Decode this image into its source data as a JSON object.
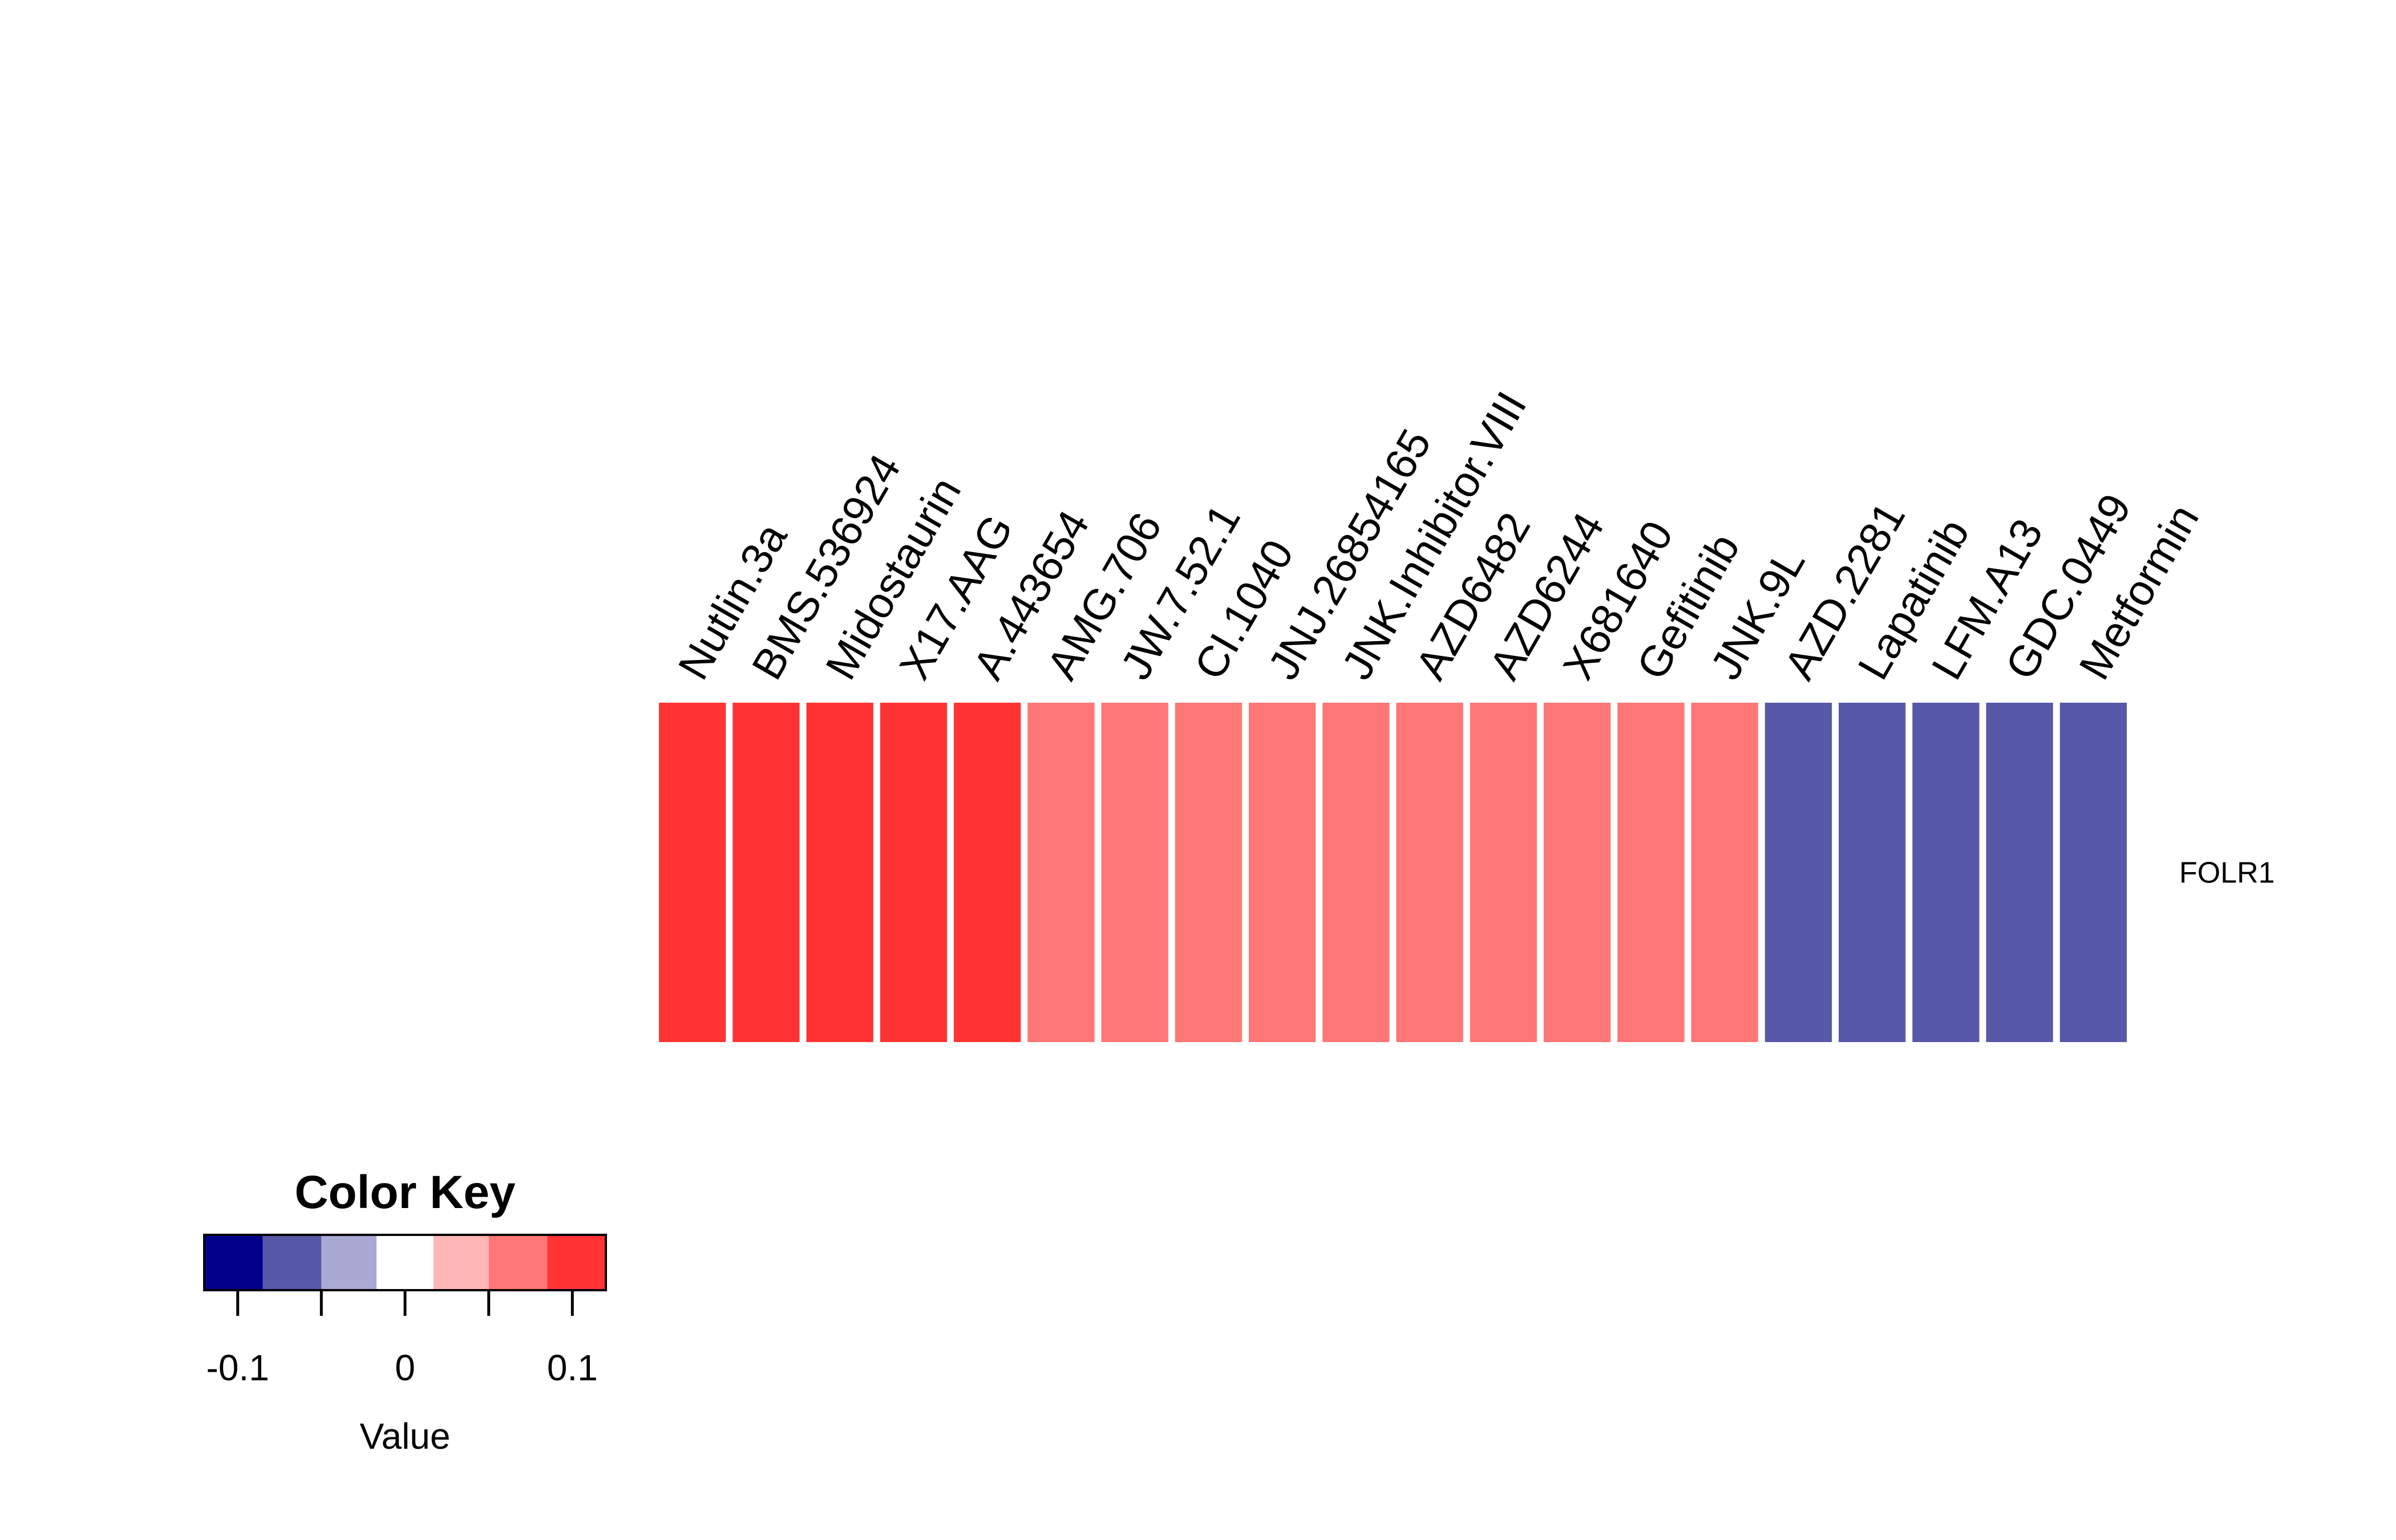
{
  "chart_data": {
    "type": "heatmap",
    "row_labels": [
      "FOLR1"
    ],
    "column_labels": [
      "Nutlin.3a",
      "BMS.536924",
      "Midostaurin",
      "X17.AAG",
      "A.443654",
      "AMG.706",
      "JW.7.52.1",
      "CI.1040",
      "JNJ.26854165",
      "JNK.Inhibitor.VIII",
      "AZD6482",
      "AZD6244",
      "X681640",
      "Gefitinib",
      "JNK.9L",
      "AZD.2281",
      "Lapatinib",
      "LFM.A13",
      "GDC.0449",
      "Metformin"
    ],
    "values": [
      [
        0.11,
        0.11,
        0.11,
        0.11,
        0.11,
        0.07,
        0.07,
        0.07,
        0.07,
        0.07,
        0.07,
        0.07,
        0.07,
        0.07,
        0.07,
        -0.07,
        -0.07,
        -0.07,
        -0.07,
        -0.07
      ]
    ],
    "color_key": {
      "title": "Color Key",
      "xlabel": "Value",
      "range": [
        -0.12,
        0.12
      ],
      "ticks": [
        -0.1,
        -0.05,
        0,
        0.05,
        0.1
      ],
      "tick_labels": [
        "-0.1",
        "0",
        "0.1"
      ],
      "tick_label_values": [
        -0.1,
        0,
        0.1
      ],
      "bins": [
        {
          "from": -0.12,
          "to": -0.085,
          "color": "#00008B"
        },
        {
          "from": -0.085,
          "to": -0.05,
          "color": "#5858A9"
        },
        {
          "from": -0.05,
          "to": -0.017,
          "color": "#A9A9D4"
        },
        {
          "from": -0.017,
          "to": 0.017,
          "color": "#FFFFFF"
        },
        {
          "from": 0.017,
          "to": 0.05,
          "color": "#FFB6B6"
        },
        {
          "from": 0.05,
          "to": 0.085,
          "color": "#FF7676"
        },
        {
          "from": 0.085,
          "to": 0.12,
          "color": "#FF3333"
        }
      ]
    }
  }
}
